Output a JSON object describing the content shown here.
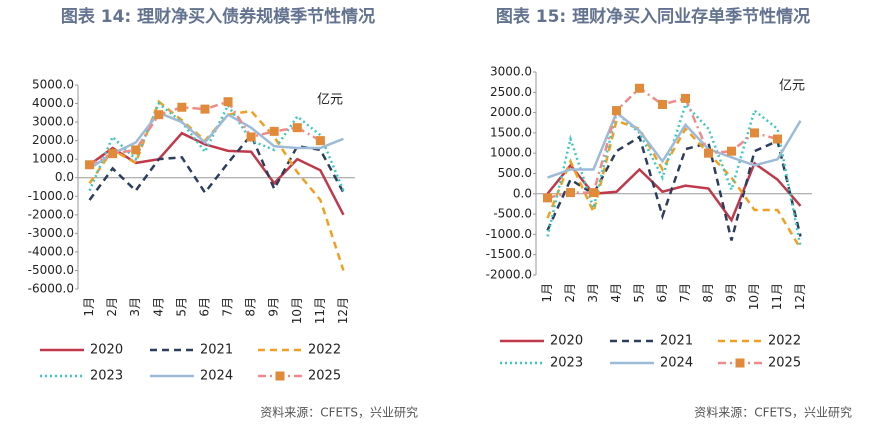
{
  "chart_data": [
    {
      "type": "line",
      "title": "图表 14: 理财净买入债券规模季节性情况",
      "unit": "亿元",
      "source": "资料来源：CFETS，兴业研究",
      "categories": [
        "1月",
        "2月",
        "3月",
        "4月",
        "5月",
        "6月",
        "7月",
        "8月",
        "9月",
        "10月",
        "11月",
        "12月"
      ],
      "ylim": [
        -6000,
        5000
      ],
      "yticks": [
        {
          "value": 5000,
          "label": "5000.0"
        },
        {
          "value": 4000,
          "label": "4000.0"
        },
        {
          "value": 3000,
          "label": "3000.0"
        },
        {
          "value": 2000,
          "label": "2000.0"
        },
        {
          "value": 1000,
          "label": "1000.0"
        },
        {
          "value": 0,
          "label": "0.0"
        },
        {
          "value": -1000,
          "label": "-1000.0"
        },
        {
          "value": -2000,
          "label": "-2000.0"
        },
        {
          "value": -3000,
          "label": "-3000.0"
        },
        {
          "value": -4000,
          "label": "-4000.0"
        },
        {
          "value": -5000,
          "label": "-5000.0"
        },
        {
          "value": -6000,
          "label": "-6000.0"
        }
      ],
      "series": [
        {
          "name": "2020",
          "color": "#c0394b",
          "style": "solid",
          "values": [
            700,
            1600,
            800,
            1000,
            2400,
            1800,
            1450,
            1400,
            -300,
            1000,
            400,
            -2000
          ]
        },
        {
          "name": "2021",
          "color": "#2c3e5c",
          "style": "dash",
          "values": [
            -1200,
            500,
            -700,
            1000,
            1100,
            -800,
            800,
            2300,
            -600,
            1700,
            1500,
            -800
          ]
        },
        {
          "name": "2022",
          "color": "#f0a020",
          "style": "dash",
          "values": [
            -300,
            1500,
            800,
            4100,
            3100,
            2000,
            3400,
            3600,
            2200,
            300,
            -1200,
            -5000
          ]
        },
        {
          "name": "2023",
          "color": "#3cc8c0",
          "style": "dot",
          "values": [
            -700,
            2200,
            1000,
            4000,
            3000,
            1400,
            3900,
            2000,
            1500,
            3300,
            2300,
            -700
          ]
        },
        {
          "name": "2024",
          "color": "#9dbbd8",
          "style": "solid",
          "values": [
            500,
            1300,
            1900,
            3500,
            3000,
            1900,
            3400,
            2700,
            1700,
            1600,
            1600,
            2100
          ]
        },
        {
          "name": "2025",
          "color": "#f08a8a",
          "style": "dashdot",
          "marker": "square",
          "marker_color": "#e08a3a",
          "values": [
            700,
            1300,
            1500,
            3400,
            3800,
            3700,
            4100,
            2200,
            2500,
            2700,
            2000,
            null
          ]
        }
      ]
    },
    {
      "type": "line",
      "title": "图表 15: 理财净买入同业存单季节性情况",
      "unit": "亿元",
      "source": "资料来源：CFETS，兴业研究",
      "categories": [
        "1月",
        "2月",
        "3月",
        "4月",
        "5月",
        "6月",
        "7月",
        "8月",
        "9月",
        "10月",
        "11月",
        "12月"
      ],
      "ylim": [
        -2000,
        3000
      ],
      "yticks": [
        {
          "value": 3000,
          "label": "3000.0"
        },
        {
          "value": 2500,
          "label": "2500.0"
        },
        {
          "value": 2000,
          "label": "2000.0"
        },
        {
          "value": 1500,
          "label": "1500.0"
        },
        {
          "value": 1000,
          "label": "1000.0"
        },
        {
          "value": 500,
          "label": "500.0"
        },
        {
          "value": 0,
          "label": "0.0"
        },
        {
          "value": -500,
          "label": "-500.0"
        },
        {
          "value": -1000,
          "label": "-1000.0"
        },
        {
          "value": -1500,
          "label": "-1500.0"
        },
        {
          "value": -2000,
          "label": "-2000.0"
        }
      ],
      "series": [
        {
          "name": "2020",
          "color": "#c0394b",
          "style": "solid",
          "values": [
            0,
            700,
            0,
            50,
            600,
            50,
            200,
            130,
            -650,
            750,
            350,
            -300
          ]
        },
        {
          "name": "2021",
          "color": "#2c3e5c",
          "style": "dash",
          "values": [
            -900,
            350,
            0,
            1050,
            1400,
            -550,
            1100,
            1250,
            -1150,
            1050,
            1300,
            -1050
          ]
        },
        {
          "name": "2022",
          "color": "#f0a020",
          "style": "dash",
          "values": [
            -600,
            800,
            -450,
            1800,
            1600,
            600,
            1600,
            1000,
            400,
            -400,
            -400,
            -1350
          ]
        },
        {
          "name": "2023",
          "color": "#3cc8c0",
          "style": "dot",
          "values": [
            -1050,
            1350,
            -350,
            2000,
            1500,
            400,
            2200,
            1600,
            100,
            2050,
            1600,
            -1300
          ]
        },
        {
          "name": "2024",
          "color": "#9dbbd8",
          "style": "solid",
          "values": [
            400,
            600,
            600,
            2000,
            1550,
            800,
            1700,
            1100,
            900,
            700,
            850,
            1800
          ]
        },
        {
          "name": "2025",
          "color": "#f08a8a",
          "style": "dashdot",
          "marker": "square",
          "marker_color": "#e08a3a",
          "values": [
            -100,
            30,
            30,
            2050,
            2600,
            2200,
            2350,
            1000,
            1050,
            1500,
            1350,
            null
          ]
        }
      ]
    }
  ]
}
